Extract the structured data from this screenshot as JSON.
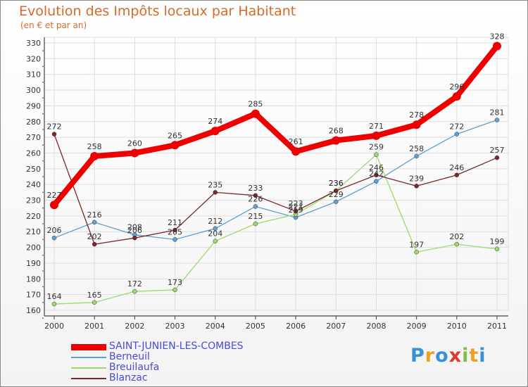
{
  "title": "Evolution des Impôts locaux par Habitant",
  "subtitle": "(en € et par an)",
  "logo": {
    "text": [
      "P",
      "r",
      "o",
      "x",
      "i",
      "t",
      "i"
    ],
    "colors": [
      "#3b8fd6",
      "#f0a020",
      "#3b8fd6",
      "#e03a2a",
      "#7ac043",
      "#f0a020",
      "#3b8fd6"
    ]
  },
  "chart_data": {
    "type": "line",
    "title": "Evolution des Impôts locaux par Habitant",
    "subtitle": "(en € et par an)",
    "categories": [
      "2000",
      "2001",
      "2002",
      "2003",
      "2004",
      "2005",
      "2006",
      "2007",
      "2008",
      "2009",
      "2010",
      "2011"
    ],
    "ylim": [
      160,
      330
    ],
    "yticks": [
      160,
      170,
      180,
      190,
      200,
      210,
      220,
      230,
      240,
      250,
      260,
      270,
      280,
      290,
      300,
      310,
      320,
      330
    ],
    "grid": true,
    "legend_position": "bottom-left",
    "series": [
      {
        "name": "Berneuil",
        "color": "#5f9fd2",
        "values": [
          206,
          216,
          208,
          205,
          212,
          226,
          219,
          229,
          242,
          258,
          272,
          281
        ],
        "labels": [
          "206",
          "216",
          "208",
          "205",
          "212",
          "226",
          "219",
          "229",
          "242",
          "258",
          "272",
          "281"
        ]
      },
      {
        "name": "Breuilaufa",
        "color": "#9dd970",
        "values": [
          164,
          165,
          172,
          173,
          204,
          215,
          221,
          236,
          259,
          197,
          202,
          199
        ],
        "labels": [
          "164",
          "165",
          "172",
          "173",
          "204",
          "215",
          "221",
          "236",
          "259",
          "197",
          "202",
          "199"
        ]
      },
      {
        "name": "Blanzac",
        "color": "#7a2828",
        "values": [
          272,
          202,
          206,
          211,
          235,
          233,
          223,
          236,
          246,
          239,
          246,
          257
        ],
        "labels": [
          "272",
          "202",
          "206",
          "211",
          "235",
          "233",
          "223",
          "236",
          "246",
          "239",
          "246",
          "257"
        ]
      },
      {
        "name": "SAINT-JUNIEN-LES-COMBES",
        "color": "#ee0000",
        "values": [
          227,
          258,
          260,
          265,
          274,
          285,
          261,
          268,
          271,
          278,
          296,
          328
        ],
        "labels": [
          "227",
          "258",
          "260",
          "265",
          "274",
          "285",
          "261",
          "268",
          "271",
          "278",
          "296",
          "328"
        ]
      }
    ]
  },
  "legend": [
    {
      "label": "SAINT-JUNIEN-LES-COMBES",
      "color": "#ee0000",
      "thickness": "heavy"
    },
    {
      "label": "Berneuil",
      "color": "#5f9fd2",
      "thickness": "thin"
    },
    {
      "label": "Breuilaufa",
      "color": "#9dd970",
      "thickness": "thin"
    },
    {
      "label": "Blanzac",
      "color": "#7a2828",
      "thickness": "thin"
    }
  ]
}
